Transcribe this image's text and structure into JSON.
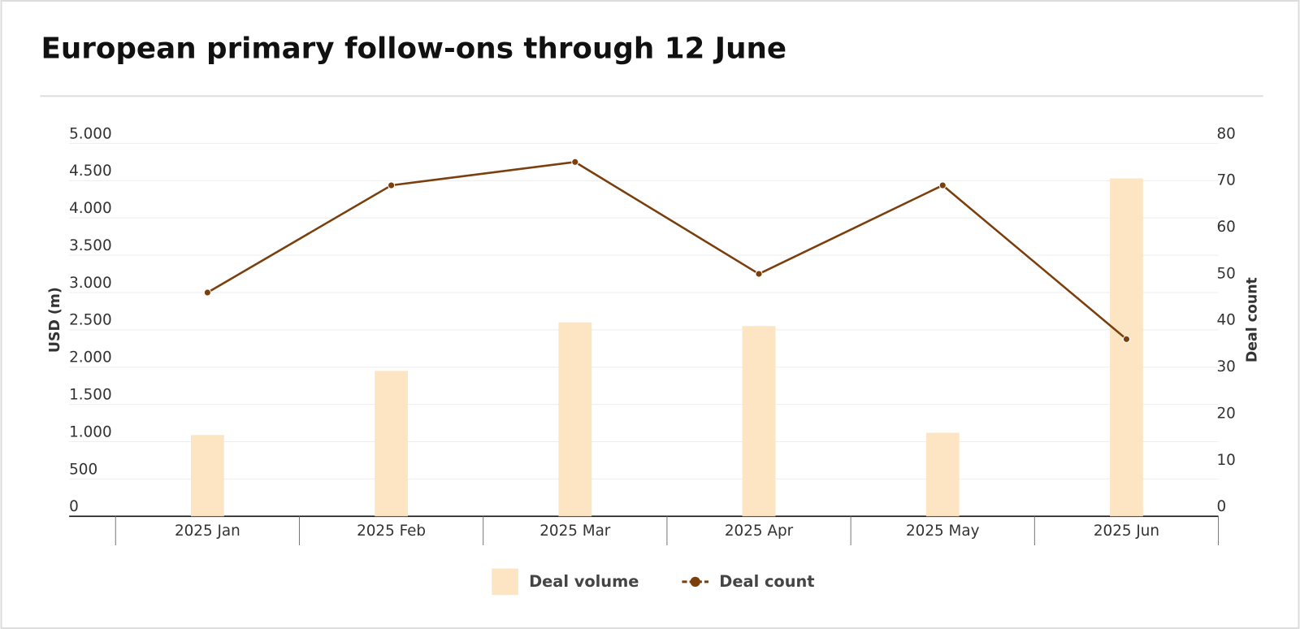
{
  "chart_data": {
    "type": "bar",
    "title": "European primary follow-ons through 12 June",
    "categories": [
      "2025 Jan",
      "2025 Feb",
      "2025 Mar",
      "2025 Apr",
      "2025 May",
      "2025 Jun"
    ],
    "series": [
      {
        "name": "Deal volume",
        "type": "bar",
        "color": "#fde5c4",
        "values": [
          1090,
          1950,
          2600,
          2550,
          1120,
          4530
        ]
      },
      {
        "name": "Deal count",
        "type": "line",
        "axis": "y2",
        "color": "#7a3f0c",
        "values": [
          48,
          71,
          76,
          52,
          71,
          38
        ]
      }
    ],
    "ylabel": "USD (m)",
    "y2label": "Deal count",
    "ylim": [
      0,
      5000
    ],
    "yticks": [
      0,
      500,
      {
        "value": 1000,
        "label": "1.000"
      },
      {
        "value": 1500,
        "label": "1.500"
      },
      {
        "value": 2000,
        "label": "2.000"
      },
      {
        "value": 2500,
        "label": "2.500"
      },
      {
        "value": 3000,
        "label": "3.000"
      },
      {
        "value": 3500,
        "label": "3.500"
      },
      {
        "value": 4000,
        "label": "4.000"
      },
      {
        "value": 4500,
        "label": "4.500"
      },
      {
        "value": 5000,
        "label": "5.000"
      }
    ],
    "y2lim": [
      0,
      80
    ],
    "y2ticks": [
      0,
      10,
      20,
      30,
      40,
      50,
      60,
      70,
      80
    ],
    "grid": true,
    "legend": "bottom"
  }
}
